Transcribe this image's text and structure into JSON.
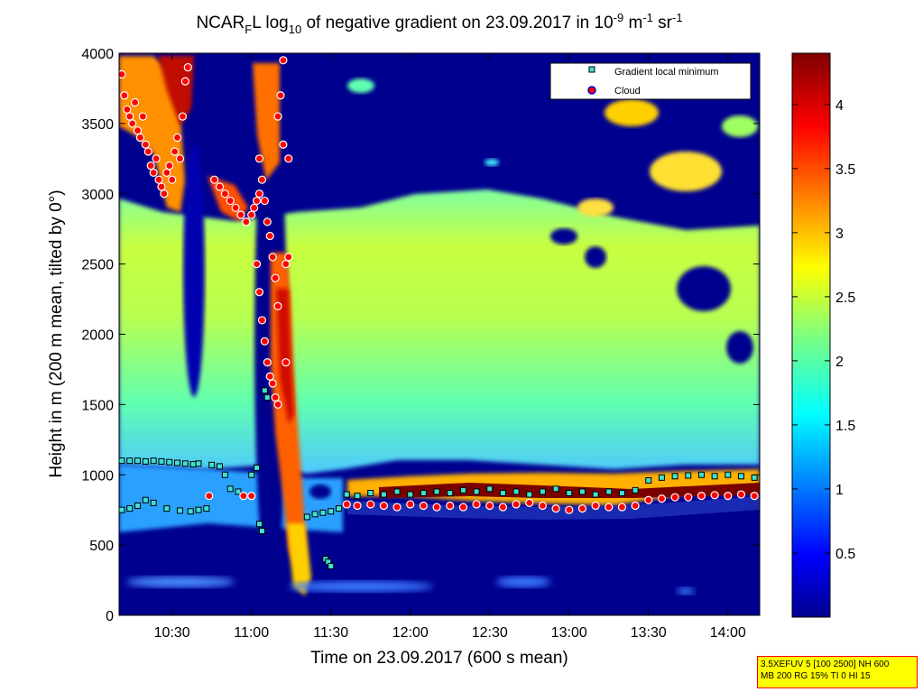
{
  "figure": {
    "title_prefix": "NCAR",
    "title_sub": "F",
    "title_mid": "L log",
    "title_sub2": "10",
    "title_text": " of negative gradient on 23.09.2017 in 10",
    "title_exp1": "-9",
    "title_unit1": " m",
    "title_exp2": "-1",
    "title_unit2": " sr",
    "title_exp3": "-1"
  },
  "info_box": {
    "line1": "3.5XEFUV 5 [100 2500] NH 600",
    "line2": "MB 200 RG 15% TI 0 HI 15"
  },
  "colors": {
    "background_low": "#00008f",
    "aerosol_layer": "#7fff7f",
    "cloud_marker": "#ff0000",
    "gradient_marker": "#40e0d0",
    "info_bg": "#ffff00"
  },
  "chart_data": {
    "type": "heatmap",
    "xlabel": "Time on 23.09.2017 (600 s mean)",
    "ylabel": "Height in m (200 m mean, tilted by 0°)",
    "x_ticks": [
      "10:30",
      "11:00",
      "11:30",
      "12:00",
      "12:30",
      "13:00",
      "13:30",
      "14:00"
    ],
    "x_tick_minutes": [
      630,
      660,
      690,
      720,
      750,
      780,
      810,
      840
    ],
    "xlim_minutes": [
      610,
      852
    ],
    "y_ticks": [
      "0",
      "500",
      "1000",
      "1500",
      "2000",
      "2500",
      "3000",
      "3500",
      "4000"
    ],
    "y_tick_values": [
      0,
      500,
      1000,
      1500,
      2000,
      2500,
      3000,
      3500,
      4000
    ],
    "ylim": [
      0,
      4000
    ],
    "colorbar": {
      "ticks": [
        "0.5",
        "1",
        "1.5",
        "2",
        "2.5",
        "3",
        "3.5",
        "4"
      ],
      "tick_values": [
        0.5,
        1,
        1.5,
        2,
        2.5,
        3,
        3.5,
        4
      ],
      "range": [
        0,
        4.4
      ],
      "colormap": "jet"
    },
    "legend": {
      "position": "top-right",
      "entries": [
        {
          "label": "Gradient local minimum",
          "marker": "square",
          "color": "#40e0d0"
        },
        {
          "label": "Cloud",
          "marker": "circle",
          "color": "#ff0000"
        }
      ]
    },
    "series": [
      {
        "name": "Gradient local minimum",
        "points_time_height": [
          [
            611,
            1100
          ],
          [
            614,
            1100
          ],
          [
            617,
            1100
          ],
          [
            620,
            1095
          ],
          [
            623,
            1100
          ],
          [
            626,
            1095
          ],
          [
            629,
            1090
          ],
          [
            632,
            1085
          ],
          [
            635,
            1080
          ],
          [
            638,
            1075
          ],
          [
            640,
            1080
          ],
          [
            611,
            750
          ],
          [
            614,
            760
          ],
          [
            617,
            780
          ],
          [
            620,
            820
          ],
          [
            623,
            800
          ],
          [
            628,
            760
          ],
          [
            633,
            745
          ],
          [
            637,
            740
          ],
          [
            640,
            750
          ],
          [
            643,
            760
          ],
          [
            645,
            1070
          ],
          [
            648,
            1060
          ],
          [
            650,
            1000
          ],
          [
            652,
            900
          ],
          [
            655,
            880
          ],
          [
            660,
            1000
          ],
          [
            662,
            1050
          ],
          [
            663,
            650
          ],
          [
            664,
            600
          ],
          [
            665,
            1600
          ],
          [
            666,
            1550
          ],
          [
            681,
            700
          ],
          [
            684,
            720
          ],
          [
            687,
            730
          ],
          [
            690,
            740
          ],
          [
            693,
            760
          ],
          [
            688,
            400
          ],
          [
            689,
            380
          ],
          [
            690,
            350
          ],
          [
            696,
            860
          ],
          [
            700,
            850
          ],
          [
            705,
            870
          ],
          [
            710,
            860
          ],
          [
            715,
            880
          ],
          [
            720,
            860
          ],
          [
            725,
            870
          ],
          [
            730,
            880
          ],
          [
            735,
            870
          ],
          [
            740,
            890
          ],
          [
            745,
            880
          ],
          [
            750,
            900
          ],
          [
            755,
            870
          ],
          [
            760,
            880
          ],
          [
            765,
            860
          ],
          [
            770,
            880
          ],
          [
            775,
            900
          ],
          [
            780,
            870
          ],
          [
            785,
            880
          ],
          [
            790,
            860
          ],
          [
            795,
            880
          ],
          [
            800,
            870
          ],
          [
            805,
            890
          ],
          [
            810,
            960
          ],
          [
            815,
            980
          ],
          [
            820,
            990
          ],
          [
            825,
            995
          ],
          [
            830,
            1000
          ],
          [
            835,
            990
          ],
          [
            840,
            1000
          ],
          [
            845,
            990
          ],
          [
            850,
            980
          ]
        ]
      },
      {
        "name": "Cloud",
        "points_time_height": [
          [
            611,
            3850
          ],
          [
            612,
            3700
          ],
          [
            613,
            3600
          ],
          [
            614,
            3550
          ],
          [
            615,
            3500
          ],
          [
            616,
            3650
          ],
          [
            617,
            3450
          ],
          [
            618,
            3400
          ],
          [
            619,
            3550
          ],
          [
            620,
            3350
          ],
          [
            621,
            3300
          ],
          [
            622,
            3200
          ],
          [
            623,
            3150
          ],
          [
            624,
            3250
          ],
          [
            625,
            3100
          ],
          [
            626,
            3050
          ],
          [
            627,
            3000
          ],
          [
            628,
            3150
          ],
          [
            629,
            3200
          ],
          [
            630,
            3100
          ],
          [
            631,
            3300
          ],
          [
            632,
            3400
          ],
          [
            633,
            3250
          ],
          [
            634,
            3550
          ],
          [
            635,
            3800
          ],
          [
            636,
            3900
          ],
          [
            646,
            3100
          ],
          [
            648,
            3050
          ],
          [
            650,
            3000
          ],
          [
            652,
            2950
          ],
          [
            654,
            2900
          ],
          [
            656,
            2850
          ],
          [
            658,
            2800
          ],
          [
            660,
            2850
          ],
          [
            661,
            2900
          ],
          [
            662,
            2950
          ],
          [
            663,
            3000
          ],
          [
            663,
            3250
          ],
          [
            664,
            3100
          ],
          [
            665,
            2950
          ],
          [
            666,
            2800
          ],
          [
            667,
            2700
          ],
          [
            668,
            2550
          ],
          [
            669,
            2400
          ],
          [
            670,
            2200
          ],
          [
            662,
            2500
          ],
          [
            663,
            2300
          ],
          [
            664,
            2100
          ],
          [
            665,
            1950
          ],
          [
            666,
            1800
          ],
          [
            667,
            1700
          ],
          [
            668,
            1650
          ],
          [
            669,
            1550
          ],
          [
            670,
            1500
          ],
          [
            673,
            1800
          ],
          [
            673,
            2500
          ],
          [
            674,
            2550
          ],
          [
            672,
            3950
          ],
          [
            671,
            3700
          ],
          [
            670,
            3550
          ],
          [
            672,
            3350
          ],
          [
            674,
            3250
          ],
          [
            644,
            850
          ],
          [
            657,
            850
          ],
          [
            660,
            850
          ],
          [
            696,
            790
          ],
          [
            700,
            780
          ],
          [
            705,
            790
          ],
          [
            710,
            780
          ],
          [
            715,
            770
          ],
          [
            720,
            790
          ],
          [
            725,
            780
          ],
          [
            730,
            770
          ],
          [
            735,
            780
          ],
          [
            740,
            770
          ],
          [
            745,
            790
          ],
          [
            750,
            780
          ],
          [
            755,
            770
          ],
          [
            760,
            790
          ],
          [
            765,
            800
          ],
          [
            770,
            780
          ],
          [
            775,
            760
          ],
          [
            780,
            750
          ],
          [
            785,
            760
          ],
          [
            790,
            780
          ],
          [
            795,
            770
          ],
          [
            800,
            770
          ],
          [
            805,
            780
          ],
          [
            810,
            820
          ],
          [
            815,
            830
          ],
          [
            820,
            840
          ],
          [
            825,
            840
          ],
          [
            830,
            850
          ],
          [
            835,
            855
          ],
          [
            840,
            850
          ],
          [
            845,
            860
          ],
          [
            850,
            850
          ]
        ]
      }
    ]
  }
}
